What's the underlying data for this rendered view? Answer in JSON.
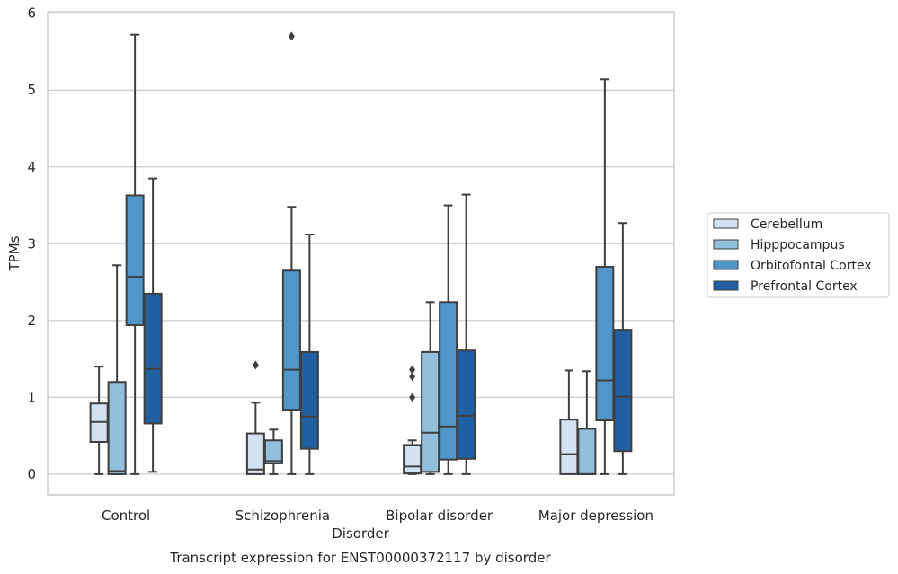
{
  "caption": "Transcript expression for ENST00000372117 by disorder",
  "chart_data": {
    "type": "box",
    "title": "",
    "xlabel": "Disorder",
    "ylabel": "TPMs",
    "ylim": [
      -0.27,
      6.02
    ],
    "yticks": [
      "0",
      "1",
      "2",
      "3",
      "4",
      "5",
      "6"
    ],
    "grid": "horizontal",
    "legend_position": "right",
    "categories": [
      "Control",
      "Schizophrenia",
      "Bipolar disorder",
      "Major depression"
    ],
    "series": [
      {
        "name": "Cerebellum",
        "color": "#d1e1f0",
        "boxes": [
          {
            "whislo": 0.0,
            "q1": 0.42,
            "med": 0.68,
            "q3": 0.92,
            "whishi": 1.4,
            "fliers": []
          },
          {
            "whislo": 0.0,
            "q1": 0.0,
            "med": 0.06,
            "q3": 0.53,
            "whishi": 0.93,
            "fliers": [
              1.42
            ]
          },
          {
            "whislo": 0.0,
            "q1": 0.01,
            "med": 0.1,
            "q3": 0.38,
            "whishi": 0.44,
            "fliers": [
              1.0,
              1.27,
              1.36
            ]
          },
          {
            "whislo": 0.0,
            "q1": 0.0,
            "med": 0.26,
            "q3": 0.71,
            "whishi": 1.35,
            "fliers": []
          }
        ]
      },
      {
        "name": "Hipppocampus",
        "color": "#92bfdb",
        "boxes": [
          {
            "whislo": 0.0,
            "q1": 0.0,
            "med": 0.04,
            "q3": 1.2,
            "whishi": 2.72,
            "fliers": []
          },
          {
            "whislo": 0.0,
            "q1": 0.14,
            "med": 0.17,
            "q3": 0.44,
            "whishi": 0.58,
            "fliers": []
          },
          {
            "whislo": 0.0,
            "q1": 0.03,
            "med": 0.54,
            "q3": 1.59,
            "whishi": 2.24,
            "fliers": []
          },
          {
            "whislo": 0.0,
            "q1": 0.0,
            "med": 0.0,
            "q3": 0.59,
            "whishi": 1.34,
            "fliers": []
          }
        ]
      },
      {
        "name": "Orbitofontal Cortex",
        "color": "#5096c8",
        "boxes": [
          {
            "whislo": 0.0,
            "q1": 1.94,
            "med": 2.57,
            "q3": 3.63,
            "whishi": 5.72,
            "fliers": []
          },
          {
            "whislo": 0.0,
            "q1": 0.84,
            "med": 1.36,
            "q3": 2.65,
            "whishi": 3.48,
            "fliers": [
              5.7
            ]
          },
          {
            "whislo": 0.0,
            "q1": 0.19,
            "med": 0.62,
            "q3": 2.24,
            "whishi": 3.5,
            "fliers": []
          },
          {
            "whislo": 0.0,
            "q1": 0.7,
            "med": 1.22,
            "q3": 2.7,
            "whishi": 5.14,
            "fliers": []
          }
        ]
      },
      {
        "name": "Prefrontal Cortex",
        "color": "#2060a2",
        "boxes": [
          {
            "whislo": 0.03,
            "q1": 0.66,
            "med": 1.37,
            "q3": 2.35,
            "whishi": 3.85,
            "fliers": []
          },
          {
            "whislo": 0.0,
            "q1": 0.33,
            "med": 0.75,
            "q3": 1.59,
            "whishi": 3.12,
            "fliers": []
          },
          {
            "whislo": 0.0,
            "q1": 0.2,
            "med": 0.76,
            "q3": 1.61,
            "whishi": 3.64,
            "fliers": []
          },
          {
            "whislo": 0.0,
            "q1": 0.3,
            "med": 1.01,
            "q3": 1.88,
            "whishi": 3.27,
            "fliers": []
          }
        ]
      }
    ],
    "colors": {
      "grid": "#cccccc",
      "frame": "#cccccc",
      "box_edge": "#3f3f3f",
      "text": "#262626",
      "background": "#ffffff"
    }
  }
}
